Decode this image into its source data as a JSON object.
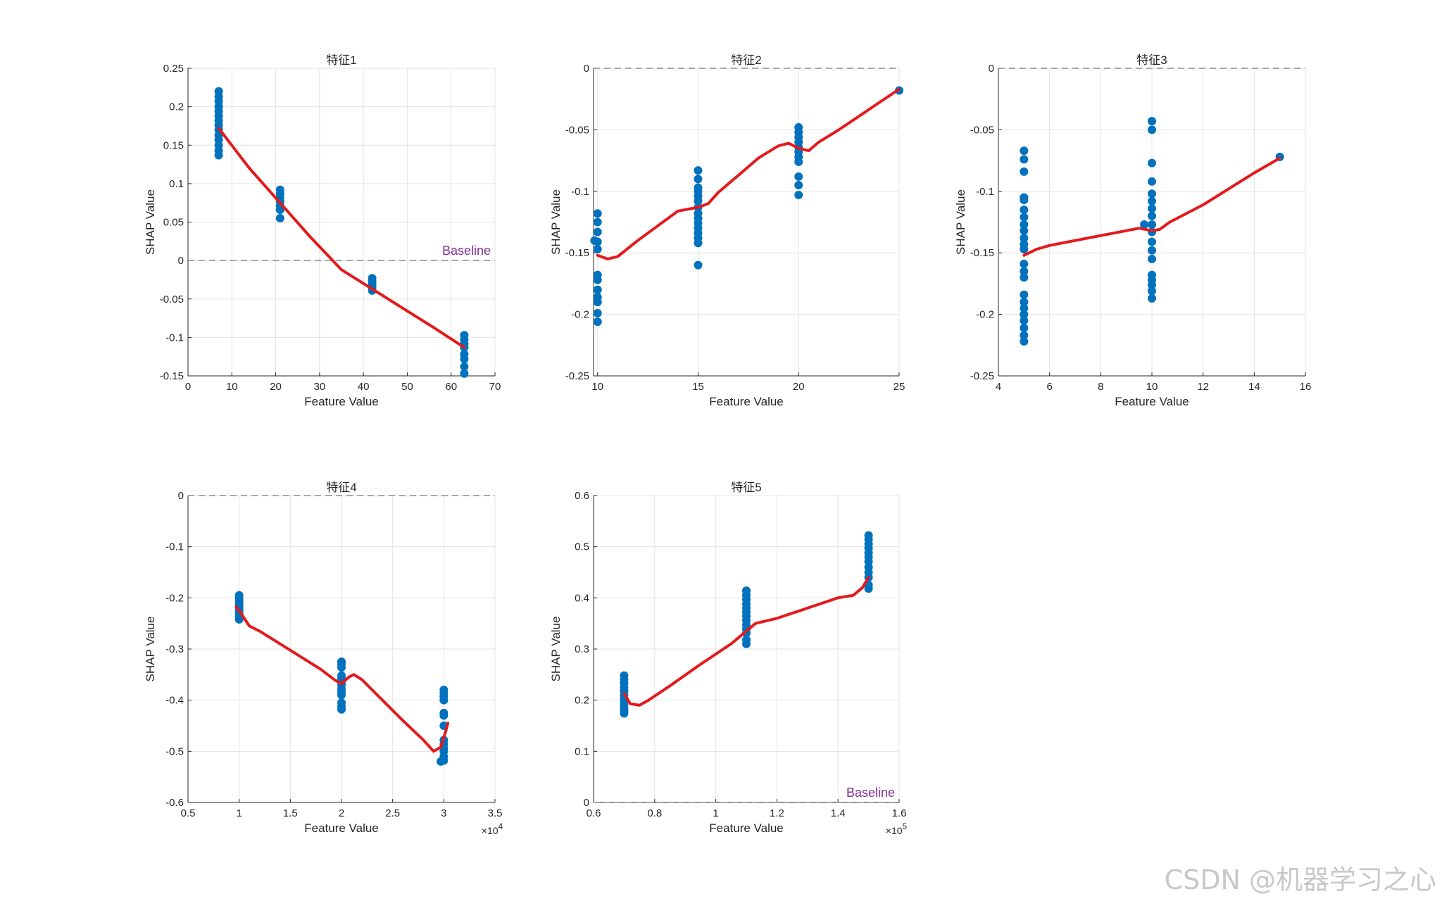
{
  "watermark": "CSDN @机器学习之心",
  "colors": {
    "scatter": "#0072BD",
    "curve": "#E31A1C",
    "baseline": "#8C8C8C",
    "baseline_label": "#7E2F8E",
    "grid": "#E3E3E3",
    "axis": "#262626"
  },
  "chart_data": [
    {
      "type": "scatter",
      "title": "特征1",
      "xlabel": "Feature Value",
      "ylabel": "SHAP Value",
      "xlim": [
        0,
        70
      ],
      "ylim": [
        -0.15,
        0.25
      ],
      "xticks": [
        0,
        10,
        20,
        30,
        40,
        50,
        60,
        70
      ],
      "yticks": [
        -0.15,
        -0.1,
        -0.05,
        0,
        0.05,
        0.1,
        0.15,
        0.2,
        0.25
      ],
      "xtick_labels": [
        "0",
        "10",
        "20",
        "30",
        "40",
        "50",
        "60",
        "70"
      ],
      "ytick_labels": [
        "-0.15",
        "-0.1",
        "-0.05",
        "0",
        "0.05",
        "0.1",
        "0.15",
        "0.2",
        "0.25"
      ],
      "baseline": 0,
      "baseline_label": "Baseline",
      "baseline_label_pos": "above-right",
      "points": [
        [
          7,
          0.22
        ],
        [
          7,
          0.213
        ],
        [
          7,
          0.207
        ],
        [
          7,
          0.2
        ],
        [
          7,
          0.194
        ],
        [
          7,
          0.188
        ],
        [
          7,
          0.182
        ],
        [
          7,
          0.176
        ],
        [
          7,
          0.17
        ],
        [
          7,
          0.163
        ],
        [
          7,
          0.157
        ],
        [
          7,
          0.15
        ],
        [
          7,
          0.143
        ],
        [
          7,
          0.137
        ],
        [
          21,
          0.092
        ],
        [
          21,
          0.087
        ],
        [
          21,
          0.082
        ],
        [
          21,
          0.077
        ],
        [
          21,
          0.071
        ],
        [
          21,
          0.066
        ],
        [
          21,
          0.055
        ],
        [
          42,
          -0.023
        ],
        [
          42,
          -0.027
        ],
        [
          42,
          -0.031
        ],
        [
          42,
          -0.035
        ],
        [
          42,
          -0.039
        ],
        [
          63,
          -0.097
        ],
        [
          63,
          -0.103
        ],
        [
          63,
          -0.108
        ],
        [
          63,
          -0.113
        ],
        [
          63,
          -0.122
        ],
        [
          63,
          -0.128
        ],
        [
          63,
          -0.138
        ],
        [
          63,
          -0.147
        ]
      ],
      "curve": [
        [
          7,
          0.172
        ],
        [
          14,
          0.12
        ],
        [
          21,
          0.075
        ],
        [
          28,
          0.03
        ],
        [
          35,
          -0.012
        ],
        [
          42,
          -0.037
        ],
        [
          49,
          -0.062
        ],
        [
          56,
          -0.087
        ],
        [
          63,
          -0.113
        ]
      ]
    },
    {
      "type": "scatter",
      "title": "特征2",
      "xlabel": "Feature Value",
      "ylabel": "SHAP Value",
      "xlim": [
        9.8,
        25
      ],
      "ylim": [
        -0.25,
        0
      ],
      "xticks": [
        10,
        15,
        20,
        25
      ],
      "yticks": [
        -0.25,
        -0.2,
        -0.15,
        -0.1,
        -0.05,
        0
      ],
      "xtick_labels": [
        "10",
        "15",
        "20",
        "25"
      ],
      "ytick_labels": [
        "-0.25",
        "-0.2",
        "-0.15",
        "-0.1",
        "-0.05",
        "0"
      ],
      "baseline": 0,
      "points": [
        [
          10,
          -0.118
        ],
        [
          10,
          -0.125
        ],
        [
          10,
          -0.133
        ],
        [
          10,
          -0.141
        ],
        [
          10,
          -0.147
        ],
        [
          9.85,
          -0.14
        ],
        [
          10,
          -0.168
        ],
        [
          10,
          -0.172
        ],
        [
          10,
          -0.18
        ],
        [
          10,
          -0.186
        ],
        [
          10,
          -0.19
        ],
        [
          10,
          -0.199
        ],
        [
          10,
          -0.206
        ],
        [
          15,
          -0.083
        ],
        [
          15,
          -0.09
        ],
        [
          15,
          -0.097
        ],
        [
          15,
          -0.1
        ],
        [
          15,
          -0.104
        ],
        [
          15,
          -0.108
        ],
        [
          15,
          -0.113
        ],
        [
          15,
          -0.118
        ],
        [
          15,
          -0.122
        ],
        [
          15,
          -0.126
        ],
        [
          15,
          -0.13
        ],
        [
          15,
          -0.134
        ],
        [
          15,
          -0.138
        ],
        [
          15,
          -0.142
        ],
        [
          15,
          -0.16
        ],
        [
          20,
          -0.048
        ],
        [
          20,
          -0.052
        ],
        [
          20,
          -0.056
        ],
        [
          20,
          -0.06
        ],
        [
          20,
          -0.064
        ],
        [
          20,
          -0.068
        ],
        [
          20,
          -0.072
        ],
        [
          20,
          -0.076
        ],
        [
          20,
          -0.088
        ],
        [
          20,
          -0.095
        ],
        [
          20,
          -0.103
        ],
        [
          25,
          -0.018
        ]
      ],
      "curve": [
        [
          10,
          -0.152
        ],
        [
          10.5,
          -0.155
        ],
        [
          11,
          -0.153
        ],
        [
          12,
          -0.14
        ],
        [
          13,
          -0.128
        ],
        [
          14,
          -0.116
        ],
        [
          15,
          -0.113
        ],
        [
          15.5,
          -0.11
        ],
        [
          16,
          -0.101
        ],
        [
          17,
          -0.087
        ],
        [
          18,
          -0.073
        ],
        [
          19,
          -0.063
        ],
        [
          19.5,
          -0.061
        ],
        [
          20,
          -0.065
        ],
        [
          20.5,
          -0.067
        ],
        [
          21,
          -0.06
        ],
        [
          22,
          -0.05
        ],
        [
          23,
          -0.039
        ],
        [
          24,
          -0.028
        ],
        [
          25,
          -0.017
        ]
      ]
    },
    {
      "type": "scatter",
      "title": "特征3",
      "xlabel": "Feature Value",
      "ylabel": "SHAP Value",
      "xlim": [
        4,
        16
      ],
      "ylim": [
        -0.25,
        0
      ],
      "xticks": [
        4,
        6,
        8,
        10,
        12,
        14,
        16
      ],
      "yticks": [
        -0.25,
        -0.2,
        -0.15,
        -0.1,
        -0.05,
        0
      ],
      "xtick_labels": [
        "4",
        "6",
        "8",
        "10",
        "12",
        "14",
        "16"
      ],
      "ytick_labels": [
        "-0.25",
        "-0.2",
        "-0.15",
        "-0.1",
        "-0.05",
        "0"
      ],
      "baseline": 0,
      "points": [
        [
          5,
          -0.067
        ],
        [
          5,
          -0.074
        ],
        [
          5,
          -0.084
        ],
        [
          5,
          -0.105
        ],
        [
          5,
          -0.107
        ],
        [
          5,
          -0.115
        ],
        [
          5,
          -0.121
        ],
        [
          5,
          -0.127
        ],
        [
          5,
          -0.132
        ],
        [
          5,
          -0.138
        ],
        [
          5,
          -0.143
        ],
        [
          5,
          -0.147
        ],
        [
          5,
          -0.159
        ],
        [
          5,
          -0.165
        ],
        [
          5,
          -0.17
        ],
        [
          5,
          -0.184
        ],
        [
          5,
          -0.19
        ],
        [
          5,
          -0.195
        ],
        [
          5,
          -0.2
        ],
        [
          5,
          -0.205
        ],
        [
          5,
          -0.211
        ],
        [
          5,
          -0.217
        ],
        [
          5,
          -0.222
        ],
        [
          10,
          -0.043
        ],
        [
          10,
          -0.05
        ],
        [
          10,
          -0.077
        ],
        [
          10,
          -0.092
        ],
        [
          10,
          -0.102
        ],
        [
          10,
          -0.108
        ],
        [
          10,
          -0.114
        ],
        [
          10,
          -0.12
        ],
        [
          10,
          -0.127
        ],
        [
          10,
          -0.133
        ],
        [
          10,
          -0.141
        ],
        [
          10,
          -0.148
        ],
        [
          10,
          -0.155
        ],
        [
          10,
          -0.168
        ],
        [
          10,
          -0.172
        ],
        [
          10,
          -0.176
        ],
        [
          10,
          -0.181
        ],
        [
          10,
          -0.187
        ],
        [
          9.7,
          -0.127
        ],
        [
          15,
          -0.072
        ]
      ],
      "curve": [
        [
          5,
          -0.152
        ],
        [
          5.5,
          -0.147
        ],
        [
          6,
          -0.144
        ],
        [
          7,
          -0.14
        ],
        [
          8,
          -0.136
        ],
        [
          9,
          -0.132
        ],
        [
          9.5,
          -0.13
        ],
        [
          10,
          -0.132
        ],
        [
          10.3,
          -0.131
        ],
        [
          10.7,
          -0.125
        ],
        [
          12,
          -0.111
        ],
        [
          13,
          -0.098
        ],
        [
          14,
          -0.085
        ],
        [
          15,
          -0.073
        ]
      ]
    },
    {
      "type": "scatter",
      "title": "特征4",
      "xlabel": "Feature Value",
      "ylabel": "SHAP Value",
      "xlim": [
        0.5,
        3.5
      ],
      "ylim": [
        -0.6,
        0
      ],
      "xticks": [
        0.5,
        1,
        1.5,
        2,
        2.5,
        3,
        3.5
      ],
      "yticks": [
        -0.6,
        -0.5,
        -0.4,
        -0.3,
        -0.2,
        -0.1,
        0
      ],
      "xtick_labels": [
        "0.5",
        "1",
        "1.5",
        "2",
        "2.5",
        "3",
        "3.5"
      ],
      "ytick_labels": [
        "-0.6",
        "-0.5",
        "-0.4",
        "-0.3",
        "-0.2",
        "-0.1",
        "0"
      ],
      "x_exponent": "×10",
      "x_exponent_power": "4",
      "baseline": 0,
      "points": [
        [
          1,
          -0.195
        ],
        [
          1,
          -0.2
        ],
        [
          1,
          -0.205
        ],
        [
          1,
          -0.21
        ],
        [
          1,
          -0.215
        ],
        [
          1,
          -0.22
        ],
        [
          1,
          -0.225
        ],
        [
          1,
          -0.23
        ],
        [
          1,
          -0.236
        ],
        [
          1,
          -0.242
        ],
        [
          2,
          -0.325
        ],
        [
          2,
          -0.33
        ],
        [
          2,
          -0.336
        ],
        [
          2,
          -0.352
        ],
        [
          2,
          -0.358
        ],
        [
          2,
          -0.364
        ],
        [
          2,
          -0.37
        ],
        [
          2,
          -0.378
        ],
        [
          2,
          -0.384
        ],
        [
          2,
          -0.39
        ],
        [
          2,
          -0.405
        ],
        [
          2,
          -0.412
        ],
        [
          2,
          -0.418
        ],
        [
          3,
          -0.38
        ],
        [
          3,
          -0.386
        ],
        [
          3,
          -0.393
        ],
        [
          3,
          -0.4
        ],
        [
          3,
          -0.425
        ],
        [
          3,
          -0.43
        ],
        [
          3,
          -0.45
        ],
        [
          3,
          -0.478
        ],
        [
          3,
          -0.486
        ],
        [
          3,
          -0.494
        ],
        [
          3,
          -0.5
        ],
        [
          3,
          -0.51
        ],
        [
          3,
          -0.518
        ],
        [
          2.97,
          -0.52
        ]
      ],
      "curve": [
        [
          0.97,
          -0.218
        ],
        [
          1,
          -0.225
        ],
        [
          1.05,
          -0.24
        ],
        [
          1.1,
          -0.255
        ],
        [
          1.2,
          -0.265
        ],
        [
          1.4,
          -0.29
        ],
        [
          1.6,
          -0.315
        ],
        [
          1.8,
          -0.34
        ],
        [
          1.93,
          -0.36
        ],
        [
          2,
          -0.368
        ],
        [
          2.07,
          -0.355
        ],
        [
          2.12,
          -0.35
        ],
        [
          2.2,
          -0.36
        ],
        [
          2.4,
          -0.4
        ],
        [
          2.6,
          -0.44
        ],
        [
          2.8,
          -0.478
        ],
        [
          2.9,
          -0.5
        ],
        [
          2.97,
          -0.492
        ],
        [
          3.02,
          -0.46
        ],
        [
          3.04,
          -0.445
        ]
      ]
    },
    {
      "type": "scatter",
      "title": "特征5",
      "xlabel": "Feature Value",
      "ylabel": "SHAP Value",
      "xlim": [
        0.6,
        1.6
      ],
      "ylim": [
        0,
        0.6
      ],
      "xticks": [
        0.6,
        0.8,
        1,
        1.2,
        1.4,
        1.6
      ],
      "yticks": [
        0,
        0.1,
        0.2,
        0.3,
        0.4,
        0.5,
        0.6
      ],
      "xtick_labels": [
        "0.6",
        "0.8",
        "1",
        "1.2",
        "1.4",
        "1.6"
      ],
      "ytick_labels": [
        "0",
        "0.1",
        "0.2",
        "0.3",
        "0.4",
        "0.5",
        "0.6"
      ],
      "x_exponent": "×10",
      "x_exponent_power": "5",
      "baseline": 0,
      "baseline_label": "Baseline",
      "baseline_label_pos": "above-right",
      "points": [
        [
          0.7,
          0.248
        ],
        [
          0.7,
          0.24
        ],
        [
          0.7,
          0.233
        ],
        [
          0.7,
          0.225
        ],
        [
          0.7,
          0.218
        ],
        [
          0.7,
          0.21
        ],
        [
          0.7,
          0.203
        ],
        [
          0.7,
          0.196
        ],
        [
          0.7,
          0.19
        ],
        [
          0.7,
          0.183
        ],
        [
          0.7,
          0.178
        ],
        [
          0.7,
          0.174
        ],
        [
          1.1,
          0.414
        ],
        [
          1.1,
          0.405
        ],
        [
          1.1,
          0.397
        ],
        [
          1.1,
          0.388
        ],
        [
          1.1,
          0.38
        ],
        [
          1.1,
          0.372
        ],
        [
          1.1,
          0.364
        ],
        [
          1.1,
          0.356
        ],
        [
          1.1,
          0.347
        ],
        [
          1.1,
          0.339
        ],
        [
          1.1,
          0.331
        ],
        [
          1.1,
          0.318
        ],
        [
          1.1,
          0.31
        ],
        [
          1.5,
          0.522
        ],
        [
          1.5,
          0.514
        ],
        [
          1.5,
          0.505
        ],
        [
          1.5,
          0.497
        ],
        [
          1.5,
          0.488
        ],
        [
          1.5,
          0.48
        ],
        [
          1.5,
          0.471
        ],
        [
          1.5,
          0.46
        ],
        [
          1.5,
          0.45
        ],
        [
          1.5,
          0.44
        ],
        [
          1.5,
          0.425
        ],
        [
          1.5,
          0.418
        ]
      ],
      "curve": [
        [
          0.7,
          0.213
        ],
        [
          0.72,
          0.193
        ],
        [
          0.75,
          0.19
        ],
        [
          0.78,
          0.2
        ],
        [
          0.85,
          0.228
        ],
        [
          0.95,
          0.27
        ],
        [
          1.05,
          0.31
        ],
        [
          1.09,
          0.33
        ],
        [
          1.1,
          0.335
        ],
        [
          1.13,
          0.35
        ],
        [
          1.2,
          0.36
        ],
        [
          1.3,
          0.38
        ],
        [
          1.4,
          0.4
        ],
        [
          1.45,
          0.405
        ],
        [
          1.48,
          0.42
        ],
        [
          1.5,
          0.44
        ]
      ]
    }
  ]
}
